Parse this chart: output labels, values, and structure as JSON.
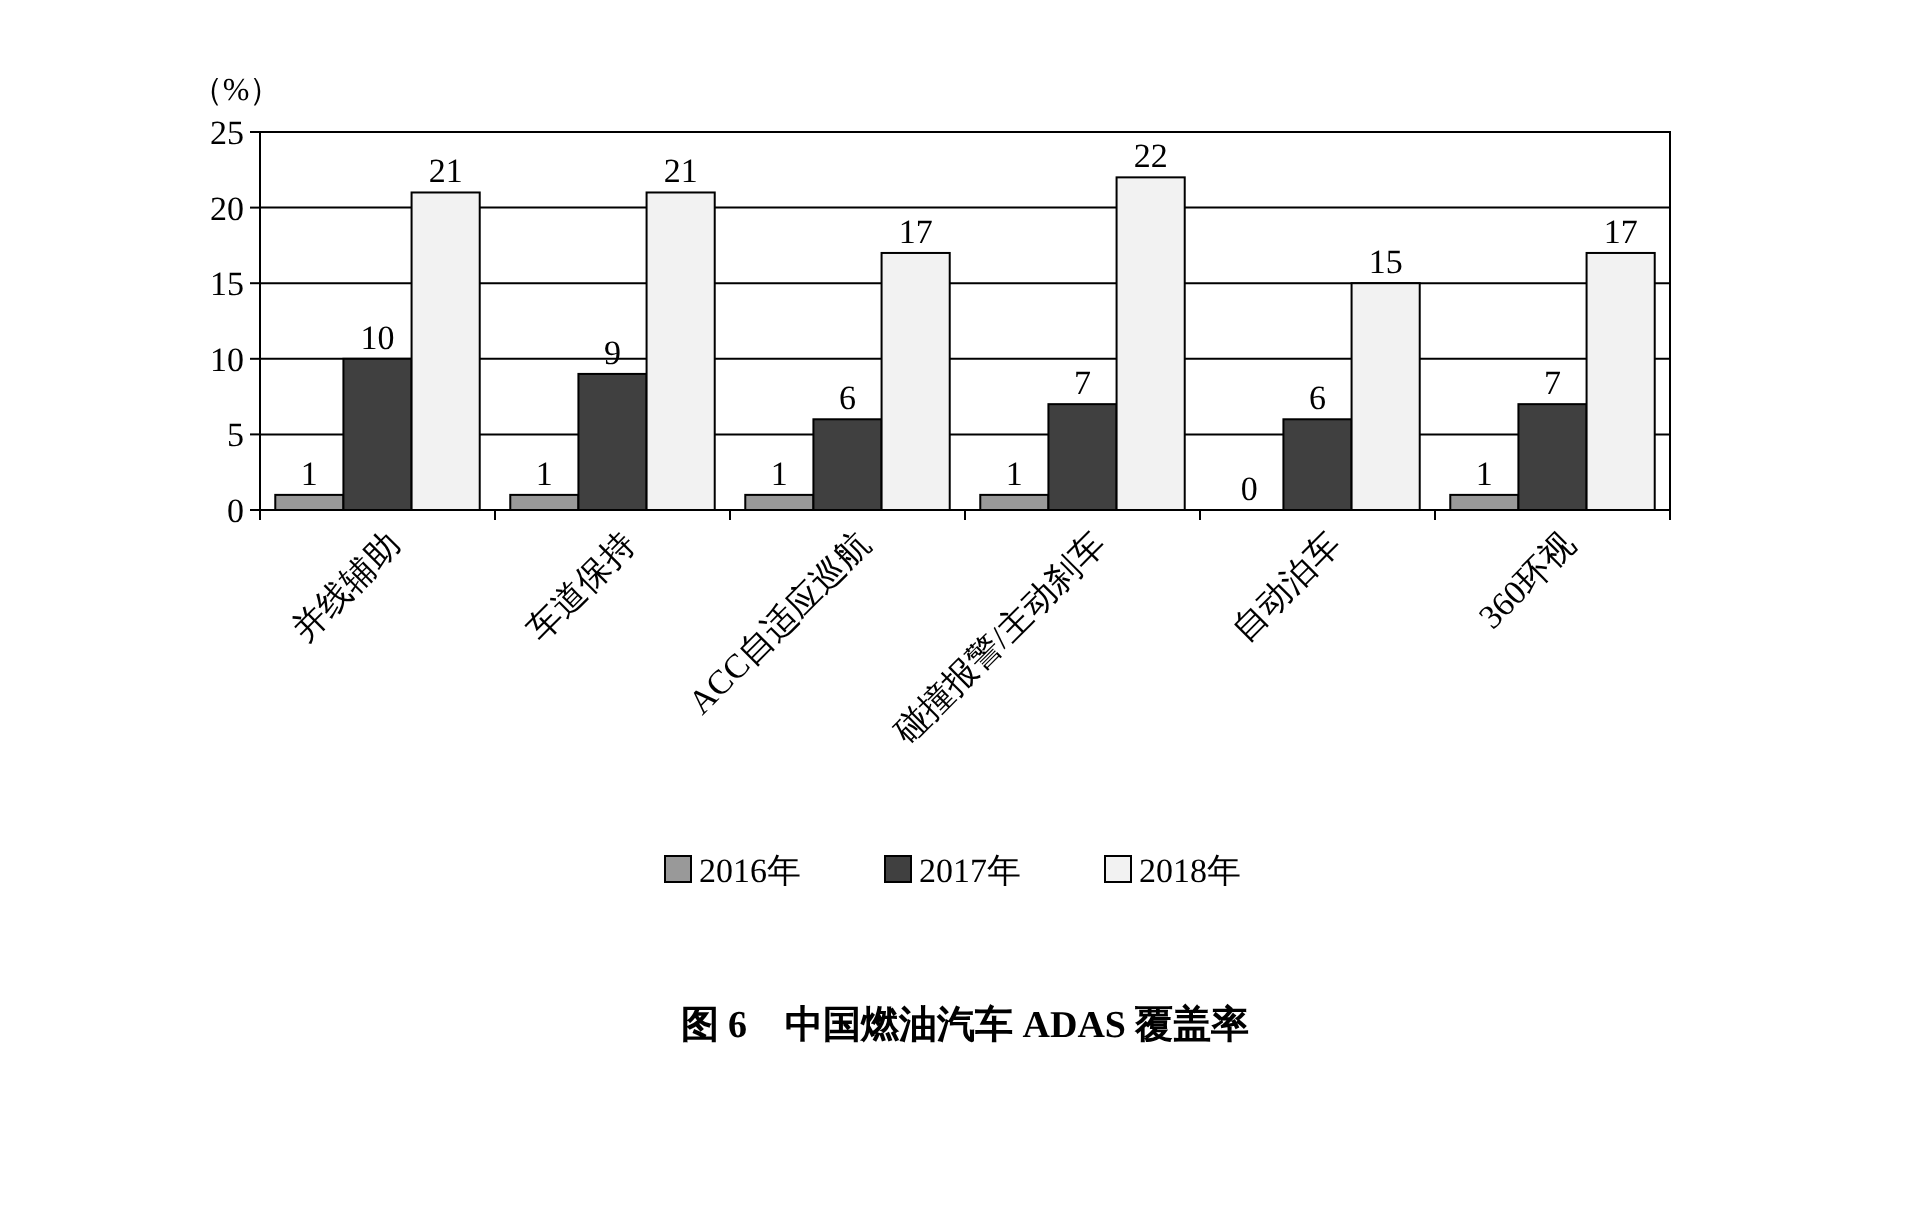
{
  "chart_data": {
    "type": "bar",
    "title": "图 6　中国燃油汽车 ADAS 覆盖率",
    "ylabel": "（%）",
    "categories": [
      "并线辅助",
      "车道保持",
      "ACC自适应巡航",
      "碰撞报警/主动刹车",
      "自动泊车",
      "360环视"
    ],
    "series": [
      {
        "name": "2016年",
        "color": "#999999",
        "values": [
          1,
          1,
          1,
          1,
          0,
          1
        ]
      },
      {
        "name": "2017年",
        "color": "#404040",
        "values": [
          10,
          9,
          6,
          7,
          6,
          7
        ]
      },
      {
        "name": "2018年",
        "color": "#f2f2f2",
        "values": [
          21,
          21,
          17,
          22,
          15,
          17
        ]
      }
    ],
    "ylim": [
      0,
      25
    ],
    "yticks": [
      0,
      5,
      10,
      15,
      20,
      25
    ],
    "grid": "y",
    "legend": "bottom",
    "data_labels": true
  }
}
